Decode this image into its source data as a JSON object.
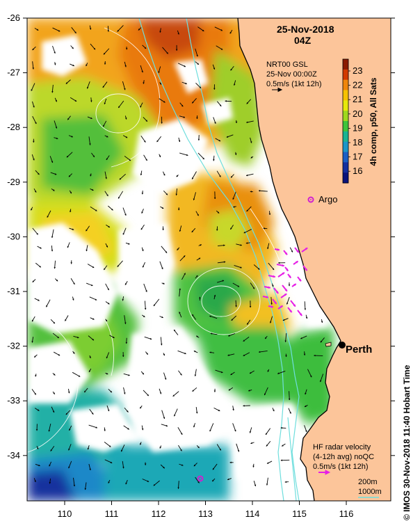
{
  "title": {
    "date": "25-Nov-2018",
    "time": "04Z"
  },
  "currents_legend": {
    "line1": "NRT00 GSL",
    "line2": "25-Nov 00:00Z",
    "line3": "0.5m/s (1kt 12h)"
  },
  "colorbar": {
    "title": "4h comp, p50, All Sats",
    "ticks": [
      "23",
      "22",
      "21",
      "20",
      "19",
      "18",
      "17",
      "16"
    ],
    "colors": [
      "#8b1a00",
      "#d23a00",
      "#f0860a",
      "#f6c200",
      "#e6e80a",
      "#9fd81e",
      "#3ec43a",
      "#19b392",
      "#1a95c8",
      "#1a5ec4",
      "#142f9e",
      "#0a137a"
    ]
  },
  "lat_ticks": [
    "-26",
    "-27",
    "-28",
    "-29",
    "-30",
    "-31",
    "-32",
    "-33",
    "-34"
  ],
  "lon_ticks": [
    "110",
    "111",
    "112",
    "113",
    "114",
    "115",
    "116"
  ],
  "places": {
    "argo": "Argo",
    "perth": "Perth"
  },
  "hf_legend": {
    "line1": "HF radar velocity",
    "line2": "(4-12h avg) noQC",
    "line3": "0.5m/s (1kt 12h)"
  },
  "isobaths": {
    "shallow": "200m",
    "deep": "1000m"
  },
  "credit": "© IMOS 30-Nov-2018 11:40 Hobart Time",
  "colors": {
    "land": "#fcc59a",
    "isobath": "#6fdedd",
    "hf_arrow": "#e61ee6",
    "argo": "#d020d0"
  }
}
